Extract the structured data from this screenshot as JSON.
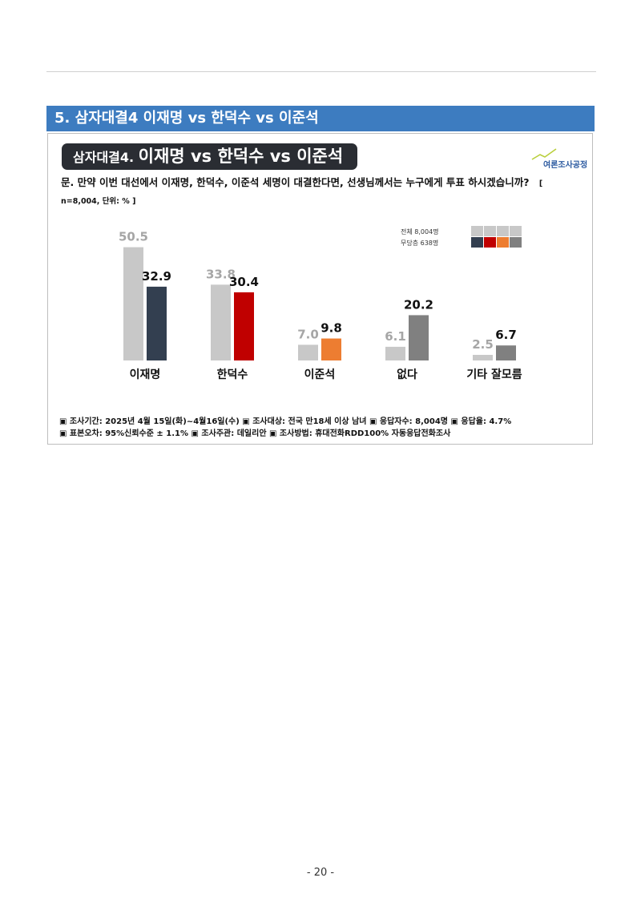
{
  "section_title": "5. 삼자대결4 이재명 vs 한덕수 vs 이준석",
  "panel": {
    "title_prefix": "삼자대결4.",
    "title_main": "이재명 vs 한덕수 vs 이준석",
    "logo_text": "여론조사공정",
    "question": "문. 만약 이번 대선에서 이재명, 한덕수, 이준석 세명이 대결한다면, 선생님께서는 누구에게 투표 하시겠습니까?",
    "question_note": "[ n=8,004, 단위: % ]",
    "legend": [
      {
        "label": "전체 8,004명",
        "colors": [
          "#c8c8c8",
          "#c8c8c8",
          "#c8c8c8",
          "#c8c8c8"
        ]
      },
      {
        "label": "무당층 638명",
        "colors": [
          "#333f50",
          "#c00000",
          "#ed7d31",
          "#808080"
        ]
      }
    ],
    "footer_line1": "▣ 조사기간: 2025년 4월 15일(화)~4월16일(수)  ▣ 조사대상: 전국 만18세 이상 남녀  ▣ 응답자수: 8,004명  ▣ 응답율: 4.7%",
    "footer_line2": "▣ 표본오차: 95%신뢰수준 ± 1.1%    ▣ 조사주관: 데일리안     ▣ 조사방법: 휴대전화RDD100% 자동응답전화조사"
  },
  "chart_data": {
    "type": "bar",
    "title": "",
    "xlabel": "",
    "ylabel": "",
    "ylim": [
      0,
      55
    ],
    "grid": false,
    "legend_position": "top-right",
    "categories": [
      "이재명",
      "한덕수",
      "이준석",
      "없다",
      "기타 잘모름"
    ],
    "series": [
      {
        "name": "전체 8,004명",
        "values": [
          50.5,
          33.8,
          7.0,
          6.1,
          2.5
        ],
        "color": "#c8c8c8",
        "label_color": "#a6a6a6"
      },
      {
        "name": "무당층 638명",
        "values": [
          32.9,
          30.4,
          9.8,
          20.2,
          6.7
        ],
        "colors": [
          "#333f50",
          "#c00000",
          "#ed7d31",
          "#808080",
          "#808080"
        ],
        "label_color": "#111111"
      }
    ]
  },
  "page_number": "- 20 -"
}
